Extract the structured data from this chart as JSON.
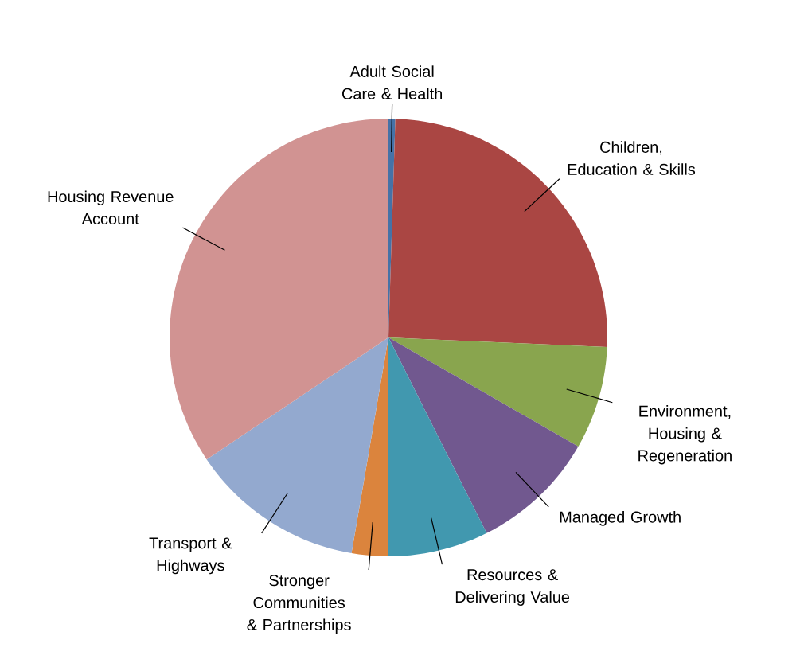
{
  "chart_data": {
    "type": "pie",
    "categories": [
      "Adult Social Care & Health",
      "Children, Education & Skills",
      "Environment, Housing & Regeneration",
      "Managed Growth",
      "Resources & Delivering Value",
      "Stronger Communities & Partnerships",
      "Transport & Highways",
      "Housing Revenue Account"
    ],
    "values": [
      0.5,
      25.2,
      7.6,
      9.3,
      7.4,
      2.7,
      12.9,
      34.4
    ],
    "colors": [
      "#4572a7",
      "#aa4643",
      "#89a54e",
      "#71588f",
      "#4198af",
      "#db843d",
      "#93a9cf",
      "#d19392"
    ]
  }
}
